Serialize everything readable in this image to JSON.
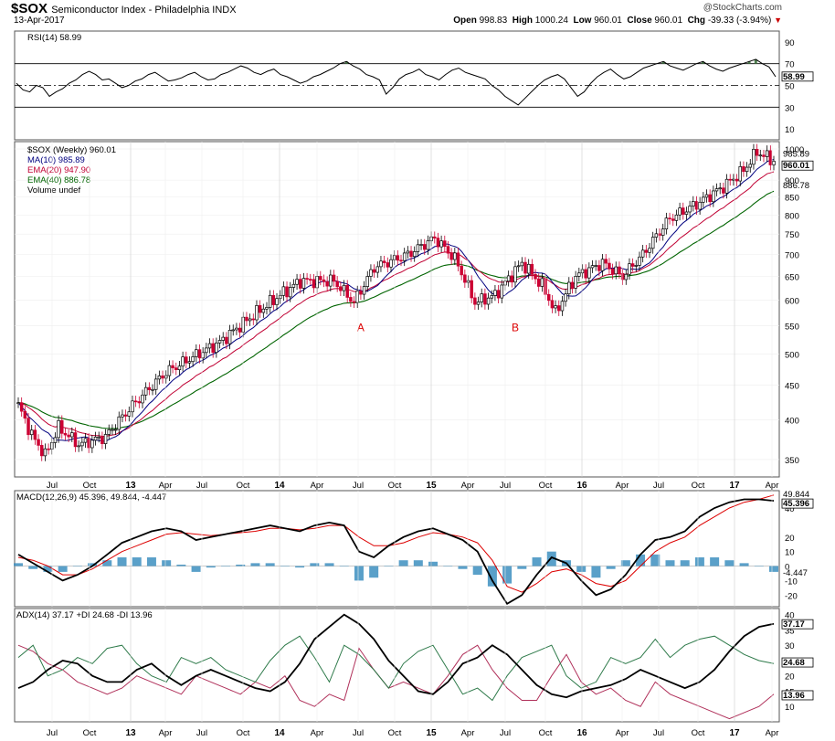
{
  "header": {
    "symbol": "$SOX",
    "description": "Semiconductor Index - Philadelphia  INDX",
    "date": "13-Apr-2017",
    "brand": "@StockCharts.com",
    "open_label": "Open",
    "open": "998.83",
    "high_label": "High",
    "high": "1000.24",
    "low_label": "Low",
    "low": "960.01",
    "close_label": "Close",
    "close": "960.01",
    "chg_label": "Chg",
    "chg": "-39.33 (-3.94%)"
  },
  "colors": {
    "ma10": "#00007f",
    "ema20": "#c00033",
    "ema40": "#006400",
    "candle_up": "#000000",
    "candle_down": "#cc0033",
    "rsi_fill": "#4f7f4f",
    "hist": "#3d8fc0",
    "di_plus": "#2e7a4a",
    "di_minus": "#b0305a"
  },
  "chart_data": [
    {
      "type": "line",
      "panel": "rsi",
      "legend": "RSI(14) 58.99",
      "ylim": [
        0,
        100
      ],
      "ticks": [
        "90",
        "70",
        "50",
        "30",
        "10"
      ],
      "overbought": 70,
      "oversold": 30,
      "last_value_label": "58.99",
      "values": [
        52,
        46,
        44,
        50,
        48,
        40,
        44,
        47,
        52,
        55,
        60,
        63,
        60,
        55,
        56,
        52,
        48,
        50,
        54,
        56,
        60,
        62,
        58,
        54,
        55,
        57,
        60,
        62,
        58,
        55,
        56,
        60,
        62,
        65,
        68,
        66,
        62,
        60,
        63,
        65,
        60,
        58,
        55,
        52,
        54,
        58,
        60,
        63,
        66,
        70,
        72,
        68,
        65,
        60,
        58,
        55,
        42,
        48,
        56,
        60,
        62,
        65,
        60,
        58,
        55,
        60,
        64,
        66,
        62,
        60,
        58,
        56,
        50,
        46,
        40,
        36,
        32,
        38,
        44,
        50,
        55,
        58,
        60,
        56,
        48,
        40,
        44,
        52,
        58,
        62,
        65,
        60,
        56,
        58,
        62,
        66,
        68,
        70,
        72,
        68,
        66,
        64,
        67,
        70,
        72,
        68,
        65,
        63,
        66,
        68,
        70,
        72,
        74,
        70,
        67,
        58
      ]
    },
    {
      "type": "candlestick",
      "panel": "price",
      "legend": [
        "$SOX (Weekly) 960.01",
        "MA(10) 985.89",
        "EMA(20) 947.90",
        "EMA(40) 886.78",
        "Volume undef"
      ],
      "series_names": [
        "MA(10)",
        "EMA(20)",
        "EMA(40)"
      ],
      "y_ticks": [
        350,
        400,
        450,
        500,
        550,
        600,
        650,
        700,
        750,
        800,
        850,
        900,
        1000
      ],
      "right_labels": [
        "985.89",
        "960.01",
        "886.78"
      ],
      "annotations": [
        {
          "text": "A",
          "x": "Oct 14"
        },
        {
          "text": "B",
          "x": "Aug 15"
        }
      ],
      "x_ticks": [
        "Jul",
        "Oct",
        "13",
        "Apr",
        "Jul",
        "Oct",
        "14",
        "Apr",
        "Jul",
        "Oct",
        "15",
        "Apr",
        "Jul",
        "Oct",
        "16",
        "Apr",
        "Jul",
        "Oct",
        "17",
        "Apr"
      ],
      "anchors": [
        [
          0,
          420
        ],
        [
          4,
          380
        ],
        [
          8,
          355
        ],
        [
          12,
          390
        ],
        [
          18,
          368
        ],
        [
          26,
          378
        ],
        [
          34,
          420
        ],
        [
          44,
          470
        ],
        [
          52,
          495
        ],
        [
          60,
          520
        ],
        [
          68,
          560
        ],
        [
          76,
          600
        ],
        [
          84,
          640
        ],
        [
          94,
          640
        ],
        [
          100,
          595
        ],
        [
          106,
          670
        ],
        [
          116,
          700
        ],
        [
          124,
          740
        ],
        [
          130,
          690
        ],
        [
          136,
          595
        ],
        [
          142,
          610
        ],
        [
          150,
          680
        ],
        [
          156,
          630
        ],
        [
          160,
          575
        ],
        [
          166,
          650
        ],
        [
          174,
          680
        ],
        [
          180,
          650
        ],
        [
          186,
          700
        ],
        [
          194,
          790
        ],
        [
          202,
          830
        ],
        [
          210,
          880
        ],
        [
          216,
          930
        ],
        [
          220,
          990
        ],
        [
          225,
          960
        ]
      ]
    },
    {
      "type": "line",
      "panel": "macd",
      "legend": "MACD(12,26,9) 45.396, 49.844, -4.447",
      "y_ticks": [
        40,
        20,
        10,
        0,
        -10,
        -20
      ],
      "right_labels": [
        "49.844",
        "45.396",
        "-4.447"
      ],
      "macd": [
        8,
        2,
        -4,
        -10,
        -6,
        0,
        8,
        16,
        20,
        24,
        26,
        24,
        18,
        20,
        22,
        24,
        26,
        28,
        26,
        24,
        28,
        30,
        28,
        10,
        6,
        14,
        20,
        24,
        26,
        22,
        18,
        10,
        -10,
        -26,
        -20,
        -6,
        6,
        2,
        -10,
        -20,
        -16,
        -6,
        8,
        18,
        20,
        24,
        34,
        40,
        44,
        46,
        46,
        45
      ],
      "signal": [
        6,
        4,
        0,
        -6,
        -6,
        -2,
        4,
        10,
        14,
        18,
        22,
        23,
        22,
        21,
        22,
        23,
        24,
        26,
        26,
        25,
        26,
        28,
        28,
        20,
        14,
        14,
        16,
        20,
        23,
        22,
        20,
        16,
        4,
        -14,
        -18,
        -12,
        -4,
        -2,
        -6,
        -12,
        -14,
        -10,
        0,
        10,
        16,
        20,
        28,
        34,
        40,
        44,
        46,
        49
      ],
      "histogram": [
        2,
        -2,
        -4,
        -4,
        0,
        2,
        4,
        6,
        6,
        6,
        4,
        1,
        -4,
        -1,
        0,
        1,
        2,
        2,
        0,
        -1,
        2,
        2,
        0,
        -10,
        -8,
        0,
        4,
        4,
        3,
        0,
        -2,
        -6,
        -14,
        -12,
        -2,
        6,
        10,
        4,
        -4,
        -8,
        -2,
        4,
        8,
        8,
        4,
        4,
        6,
        6,
        4,
        2,
        0,
        -4
      ]
    },
    {
      "type": "line",
      "panel": "adx",
      "legend": "ADX(14) 37.17 +DI 24.68 -DI 13.96",
      "y_ticks": [
        40,
        35,
        30,
        25,
        20,
        15,
        10
      ],
      "right_labels": [
        "37.17",
        "24.68",
        "13.96"
      ],
      "adx": [
        16,
        18,
        22,
        25,
        24,
        20,
        18,
        18,
        22,
        24,
        20,
        17,
        20,
        22,
        20,
        18,
        16,
        15,
        18,
        24,
        32,
        36,
        40,
        37,
        32,
        25,
        20,
        15,
        14,
        18,
        24,
        26,
        30,
        27,
        22,
        17,
        14,
        13,
        15,
        16,
        17,
        19,
        22,
        20,
        18,
        16,
        18,
        22,
        28,
        33,
        36,
        37
      ],
      "di_plus": [
        26,
        30,
        20,
        22,
        26,
        24,
        29,
        30,
        24,
        20,
        18,
        26,
        24,
        26,
        22,
        20,
        18,
        25,
        30,
        33,
        26,
        18,
        30,
        27,
        22,
        16,
        24,
        28,
        30,
        22,
        14,
        16,
        12,
        20,
        26,
        28,
        30,
        20,
        16,
        18,
        26,
        24,
        26,
        32,
        26,
        30,
        32,
        33,
        30,
        27,
        25,
        24
      ],
      "di_minus": [
        30,
        28,
        24,
        22,
        18,
        16,
        14,
        16,
        20,
        18,
        16,
        14,
        20,
        18,
        16,
        14,
        18,
        16,
        20,
        12,
        10,
        14,
        12,
        29,
        22,
        16,
        18,
        16,
        14,
        20,
        27,
        30,
        22,
        16,
        12,
        12,
        20,
        27,
        18,
        14,
        16,
        12,
        10,
        18,
        14,
        12,
        10,
        8,
        6,
        8,
        10,
        14
      ]
    }
  ]
}
